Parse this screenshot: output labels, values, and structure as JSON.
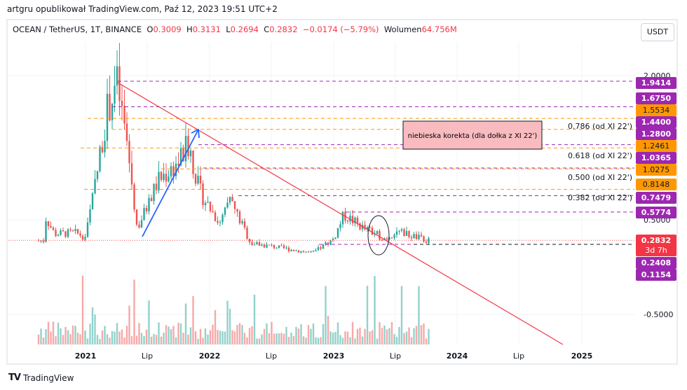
{
  "publisher": "artgru opublikował TradingView.com, Paź 12, 2023 19:51 UTC+2",
  "legend": {
    "symbol": "OCEAN / TetherUS, 1T, BINANCE",
    "o_label": "O",
    "o": "0.3009",
    "h_label": "H",
    "h": "0.3131",
    "l_label": "L",
    "l": "0.2694",
    "c_label": "C",
    "c": "0.2832",
    "change": "−0.0174 (−5.79%)",
    "vol_label": "Wolumen",
    "vol": "64.756M"
  },
  "currency_button": "USDT",
  "price_axis": {
    "ticks": [
      "2.0000",
      "0.5000",
      "-0.5000"
    ]
  },
  "time_axis": {
    "ticks": [
      "2021",
      "Lip",
      "2022",
      "Lip",
      "2023",
      "Lip",
      "2024",
      "Lip",
      "2025"
    ]
  },
  "price_labels": [
    {
      "v": "1.9414",
      "c": "#9c27b0"
    },
    {
      "v": "1.6750",
      "c": "#9c27b0"
    },
    {
      "v": "1.5534",
      "c": "#ff9800"
    },
    {
      "v": "1.4400",
      "c": "#9c27b0"
    },
    {
      "v": "1.2800",
      "c": "#9c27b0"
    },
    {
      "v": "1.2461",
      "c": "#ff9800"
    },
    {
      "v": "1.0365",
      "c": "#9c27b0"
    },
    {
      "v": "1.0275",
      "c": "#ff9800"
    },
    {
      "v": "0.8148",
      "c": "#ff9800"
    },
    {
      "v": "0.7479",
      "c": "#9c27b0"
    },
    {
      "v": "0.5774",
      "c": "#9c27b0"
    },
    {
      "v": "0.2408",
      "c": "#9c27b0"
    },
    {
      "v": "0.1154",
      "c": "#9c27b0"
    }
  ],
  "current_price": {
    "v": "0.2832",
    "countdown": "3d 7h",
    "color": "#f23645"
  },
  "fib_labels": [
    "0.786 (od XI 22')",
    "0.618 (od XI 22')",
    "0.500 (od XI 22')",
    "0.382 (od XI 22')"
  ],
  "annotation_box": {
    "text": "niebieska korekta (dla dołka z XI 22')",
    "fill": "#f8bbc0"
  },
  "colors": {
    "up": "#26a69a",
    "down": "#ef5350",
    "purple": "#9c27b0",
    "orange": "#ff9800",
    "trend": "#f23645",
    "arrow": "#2962ff"
  },
  "chart_data": {
    "type": "candlestick",
    "note_points": [
      [
        "2020-09",
        0.55
      ],
      [
        "2020-10",
        0.35
      ],
      [
        "2020-12",
        0.36
      ],
      [
        "2021-01",
        0.32
      ],
      [
        "2021-02",
        0.9
      ],
      [
        "2021-03",
        1.6
      ],
      [
        "2021-04",
        1.94
      ],
      [
        "2021-05",
        1.3
      ],
      [
        "2021-06",
        0.4
      ],
      [
        "2021-08",
        0.9
      ],
      [
        "2021-10",
        1.1
      ],
      [
        "2021-11",
        1.28
      ],
      [
        "2021-12",
        0.8
      ],
      [
        "2022-02",
        0.45
      ],
      [
        "2022-03",
        0.7
      ],
      [
        "2022-05",
        0.25
      ],
      [
        "2022-07",
        0.22
      ],
      [
        "2022-11",
        0.15
      ],
      [
        "2023-01",
        0.3
      ],
      [
        "2023-02",
        0.55
      ],
      [
        "2023-04",
        0.4
      ],
      [
        "2023-06",
        0.3
      ],
      [
        "2023-07",
        0.38
      ],
      [
        "2023-10",
        0.28
      ]
    ]
  },
  "footer": "TradingView"
}
